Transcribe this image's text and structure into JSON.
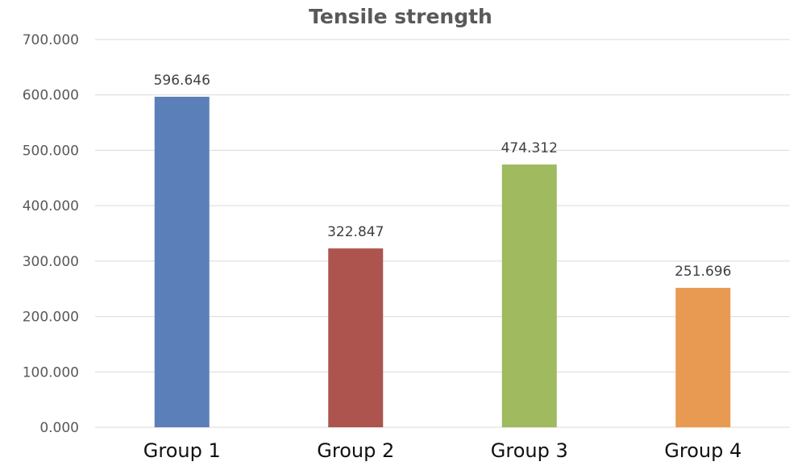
{
  "chart_data": {
    "type": "bar",
    "title": "Tensile strength",
    "xlabel": "",
    "ylabel": "",
    "categories": [
      "Group 1",
      "Group 2",
      "Group 3",
      "Group 4"
    ],
    "values": [
      596.646,
      322.847,
      474.312,
      251.696
    ],
    "value_labels": [
      "596.646",
      "322.847",
      "474.312",
      "251.696"
    ],
    "colors": [
      "#5b7fb8",
      "#ad544e",
      "#9fba5f",
      "#e89a52"
    ],
    "ylim": [
      0,
      700
    ],
    "yticks": [
      0,
      100,
      200,
      300,
      400,
      500,
      600,
      700
    ],
    "ytick_labels": [
      "0.000",
      "100.000",
      "200.000",
      "300.000",
      "400.000",
      "500.000",
      "600.000",
      "700.000"
    ],
    "grid": true,
    "legend": "none"
  }
}
